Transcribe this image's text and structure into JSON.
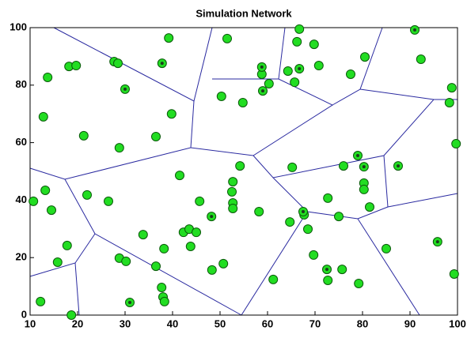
{
  "chart_data": {
    "type": "scatter",
    "title": "Simulation Network",
    "xlim": [
      10,
      100
    ],
    "ylim": [
      0,
      100
    ],
    "xticks": [
      10,
      20,
      30,
      40,
      50,
      60,
      70,
      80,
      90,
      100
    ],
    "yticks": [
      0,
      20,
      40,
      60,
      80,
      100
    ],
    "series": [
      {
        "color": "#22dd22",
        "x": [
          10.7,
          12.2,
          12.8,
          13.2,
          13.7,
          14.5,
          15.8,
          17.8,
          18.2,
          18.7,
          19.7,
          21.3,
          22,
          26.5,
          27.7,
          28.5,
          28.8,
          28.8,
          30.2,
          33.8,
          36.5,
          36.5,
          37.7,
          38,
          38.3,
          38.2,
          39.2,
          39.8,
          41.5,
          42.3,
          43.5,
          43.8,
          45,
          45.7,
          48.3,
          50.3,
          50.7,
          51.5,
          52.5,
          52.7,
          52.7,
          52.7,
          54.2,
          54.8,
          58.2,
          58.8,
          60.3,
          61.2,
          64.3,
          64.7,
          65.2,
          65.7,
          66.2,
          66.7,
          67.7,
          68.5,
          69.8,
          69.7,
          70.8,
          72.7,
          72.7,
          75,
          75.7,
          76,
          77.5,
          79.2,
          80.5,
          80.3,
          80.3,
          81.5,
          85,
          92.3,
          98.3,
          98.8,
          99.3,
          99.7
        ],
        "y": [
          39.6,
          4.7,
          69,
          43.4,
          82.7,
          36.5,
          18.4,
          24.2,
          86.5,
          0,
          86.8,
          62.4,
          41.8,
          39.6,
          88.2,
          87.6,
          58.2,
          19.8,
          18.7,
          28,
          62.1,
          17,
          9.6,
          6.3,
          4.7,
          23.1,
          96.4,
          70,
          48.6,
          28.8,
          29.9,
          23.9,
          28.8,
          39.6,
          15.7,
          76.1,
          17.9,
          96.2,
          42.9,
          46.4,
          39,
          37.1,
          51.9,
          73.9,
          36,
          83.8,
          80.5,
          12.4,
          84.9,
          32.4,
          51.4,
          81,
          95.1,
          99.5,
          34.9,
          29.9,
          94.2,
          20.9,
          86.8,
          40.7,
          12.1,
          34.3,
          15.9,
          51.9,
          83.8,
          11,
          89.8,
          45.9,
          43.7,
          37.6,
          23.1,
          89,
          73.9,
          79.1,
          14.3,
          59.6
        ]
      },
      {
        "color": "#22dd22",
        "center_color": "#1b3b1b",
        "x": [
          30,
          31,
          37.8,
          48.2,
          58.8,
          59,
          66.7,
          67.5,
          72.5,
          79,
          80.3,
          87.5,
          91,
          95.8
        ],
        "y": [
          78.6,
          4.4,
          87.6,
          34.3,
          86.3,
          78,
          85.7,
          36,
          15.9,
          55.5,
          51.6,
          51.9,
          99.2,
          25.5
        ]
      }
    ]
  }
}
